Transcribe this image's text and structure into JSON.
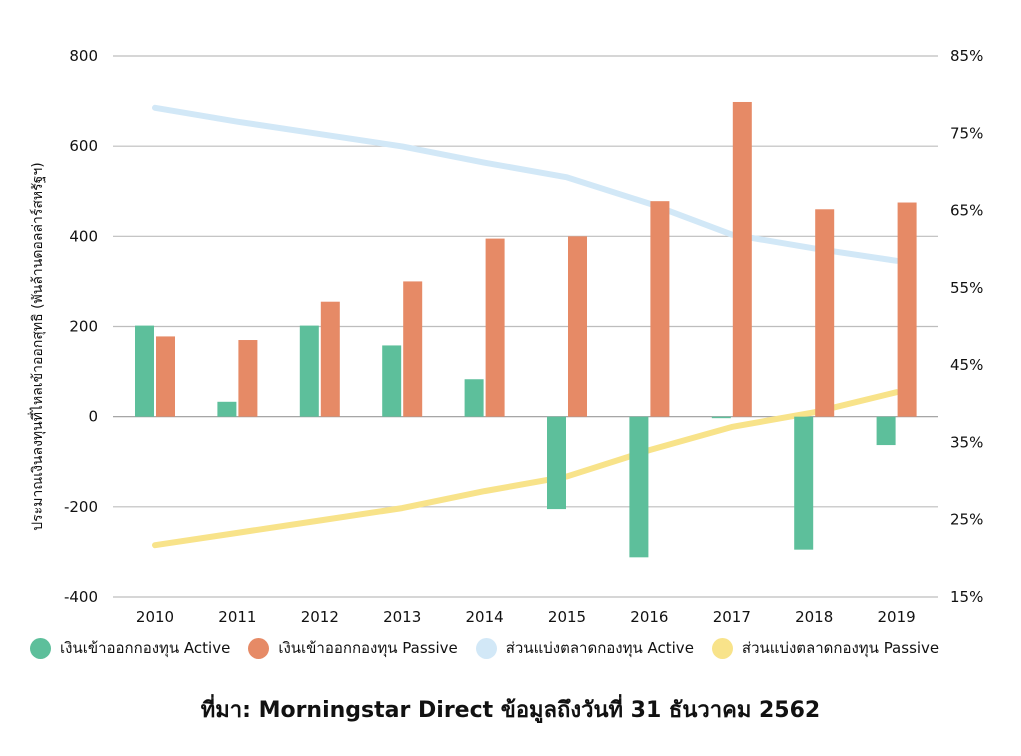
{
  "chart_data": {
    "type": "bar",
    "categories": [
      "2010",
      "2011",
      "2012",
      "2013",
      "2014",
      "2015",
      "2016",
      "2017",
      "2018",
      "2019"
    ],
    "y_left": {
      "ylim": [
        -400,
        800
      ],
      "ticks": [
        -400,
        -200,
        0,
        200,
        400,
        600,
        800
      ],
      "label": "ประมาณเงินลงทุนที่ไหลเข้าออกสุทธิ (พันล้านดอลล่าร์สหรัฐฯ)"
    },
    "y_right": {
      "ylim": [
        15,
        85
      ],
      "ticks": [
        "15%",
        "25%",
        "35%",
        "45%",
        "55%",
        "65%",
        "75%",
        "85%"
      ]
    },
    "series": [
      {
        "name": "เงินเข้าออกกองทุน Active",
        "kind": "bar",
        "axis": "left",
        "color": "#5dbf9b",
        "values": [
          202,
          33,
          202,
          158,
          83,
          -205,
          -312,
          -3,
          -295,
          -63
        ]
      },
      {
        "name": "เงินเข้าออกกองทุน Passive",
        "kind": "bar",
        "axis": "left",
        "color": "#e68a66",
        "values": [
          178,
          170,
          255,
          300,
          395,
          400,
          478,
          698,
          460,
          475
        ]
      },
      {
        "name": "ส่วนแบ่งตลาดกองทุน Active",
        "kind": "line",
        "axis": "right",
        "color": "#d2e8f7",
        "values": [
          78.3,
          76.5,
          74.9,
          73.3,
          71.2,
          69.3,
          65.9,
          61.9,
          60.1,
          58.5
        ]
      },
      {
        "name": "ส่วนแบ่งตลาดกองทุน Passive",
        "kind": "line",
        "axis": "right",
        "color": "#f8e38a",
        "values": [
          21.7,
          23.3,
          24.9,
          26.5,
          28.7,
          30.6,
          34.0,
          37.0,
          38.9,
          41.5
        ]
      }
    ],
    "grid": true,
    "legend_position": "bottom"
  },
  "source_text": "ที่มา: Morningstar Direct ข้อมูลถึงวันที่ 31 ธันวาคม 2562"
}
